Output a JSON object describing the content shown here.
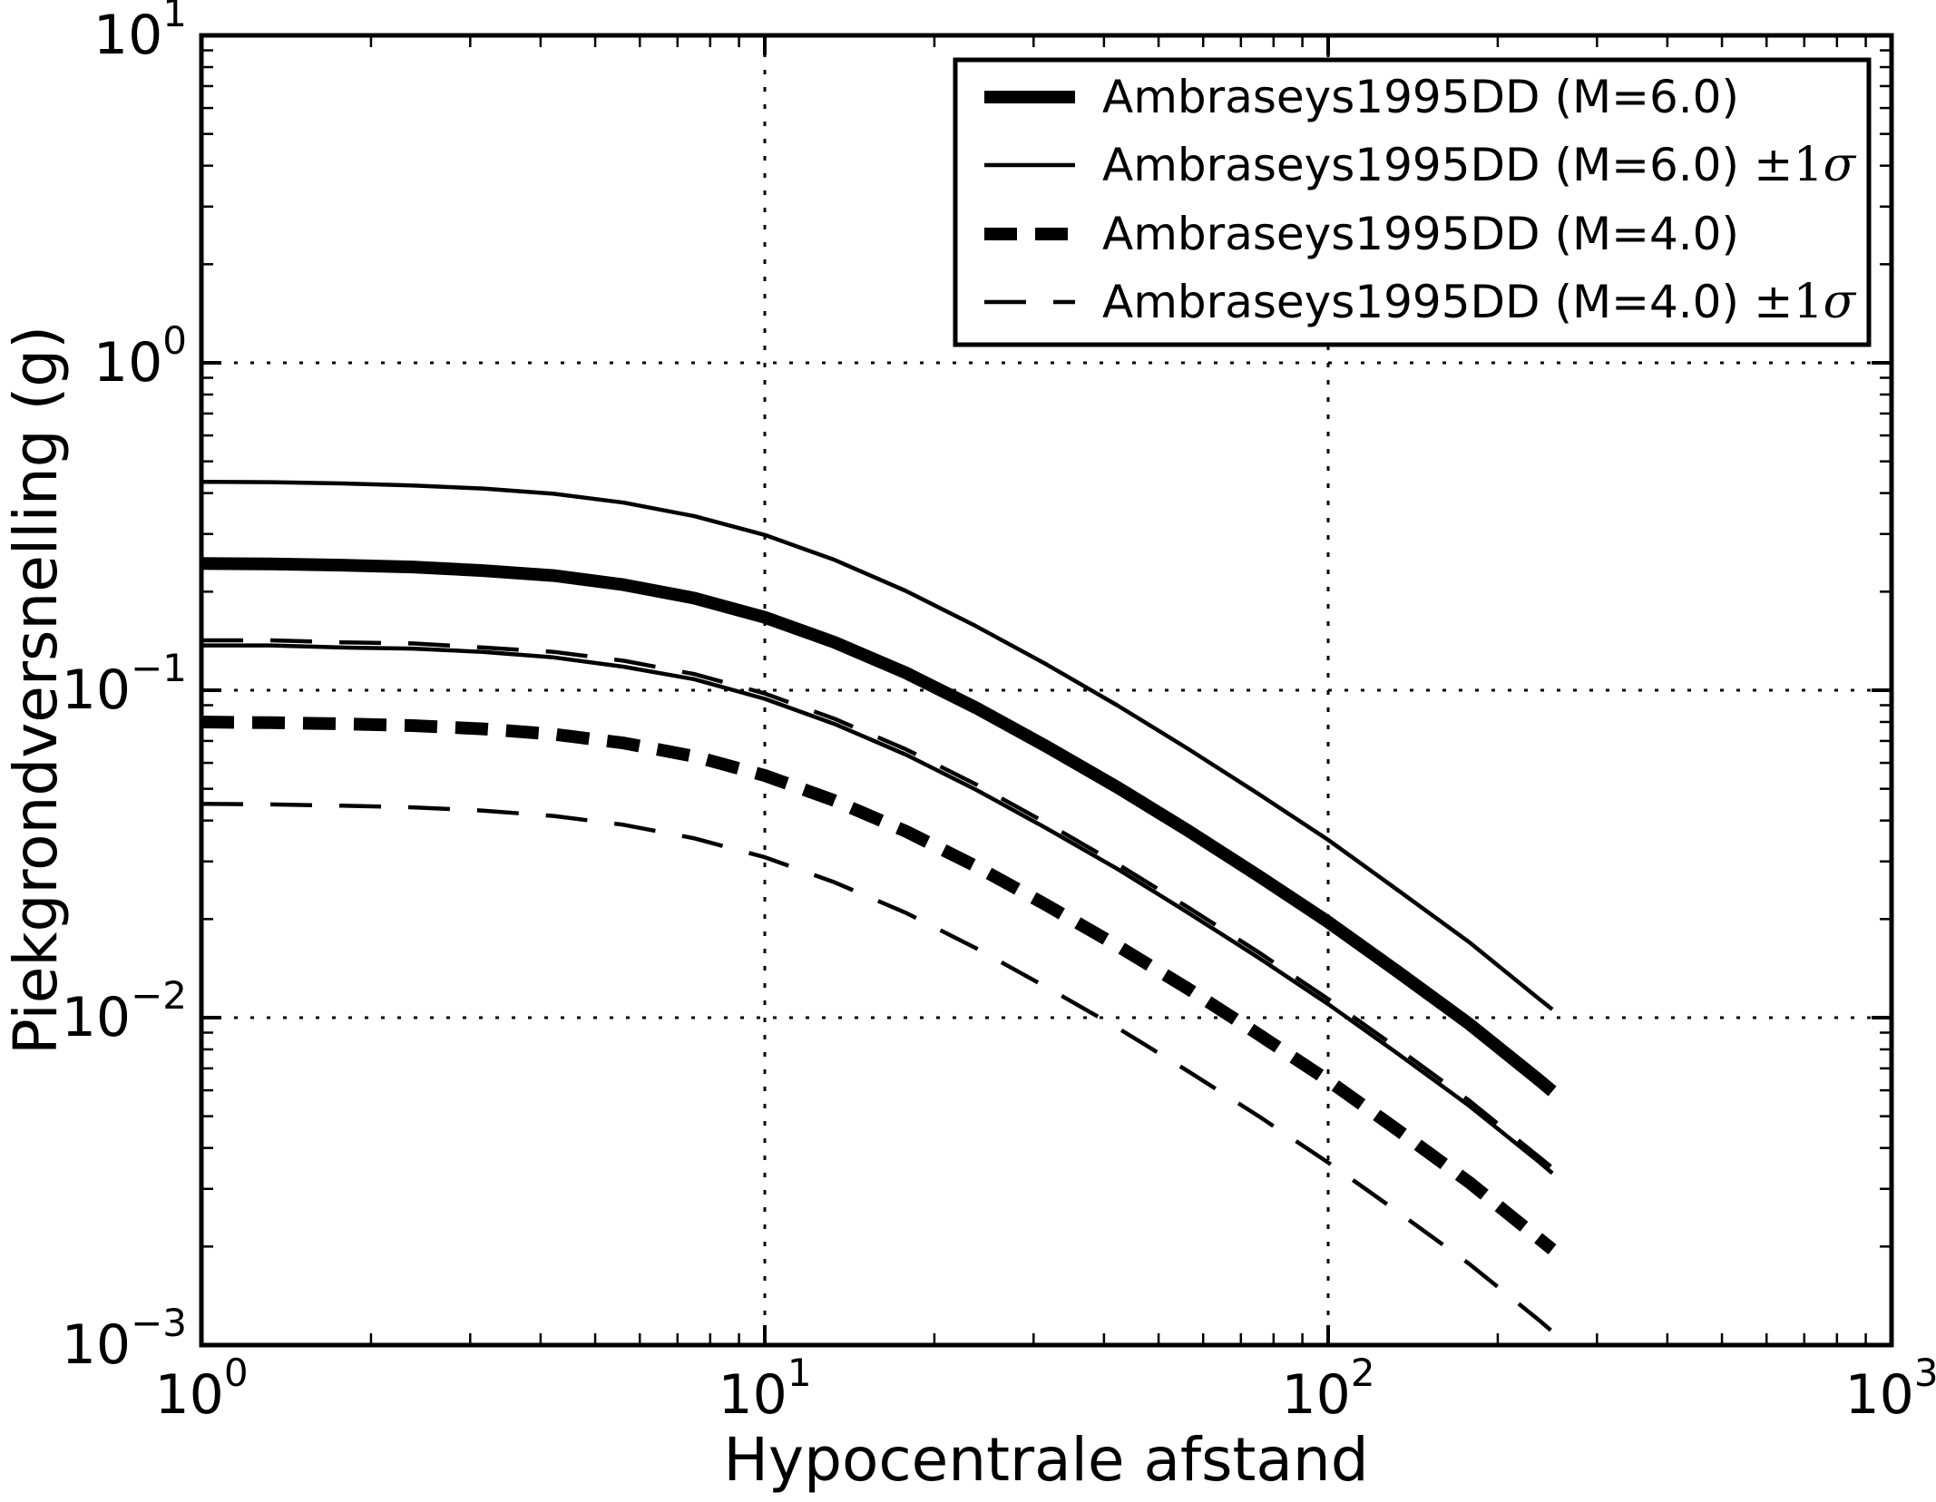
{
  "chart": {
    "xlabel": "Hypocentrale afstand",
    "ylabel": "Piekgrondversnelling (g)",
    "x_scale": "log",
    "y_scale": "log",
    "xlim": [
      1,
      1000
    ],
    "ylim": [
      0.001,
      10
    ],
    "x_ticks": [
      {
        "base": "10",
        "exp": "0",
        "value": 1
      },
      {
        "base": "10",
        "exp": "1",
        "value": 10
      },
      {
        "base": "10",
        "exp": "2",
        "value": 100
      },
      {
        "base": "10",
        "exp": "3",
        "value": 1000
      }
    ],
    "y_ticks": [
      {
        "base": "10",
        "exp": "1",
        "value": 10
      },
      {
        "base": "10",
        "exp": "0",
        "value": 1
      },
      {
        "base": "10",
        "exp": "−1",
        "value": 0.1
      },
      {
        "base": "10",
        "exp": "−2",
        "value": 0.01
      },
      {
        "base": "10",
        "exp": "−3",
        "value": 0.001
      }
    ],
    "grid": {
      "x_values": [
        10,
        100
      ],
      "y_values": [
        1,
        0.1,
        0.01
      ]
    },
    "colors": {
      "foreground": "#000000",
      "background": "#ffffff"
    }
  },
  "legend": {
    "position": "upper right",
    "entries": [
      {
        "label": "Ambraseys1995DD (M=6.0)",
        "suffix": "",
        "style": "thick-solid"
      },
      {
        "label": "Ambraseys1995DD (M=6.0)",
        "suffix": "±1σ",
        "style": "thin-solid"
      },
      {
        "label": "Ambraseys1995DD (M=4.0)",
        "suffix": "",
        "style": "thick-dashed"
      },
      {
        "label": "Ambraseys1995DD (M=4.0)",
        "suffix": "±1σ",
        "style": "thin-dashed"
      }
    ]
  },
  "chart_data": {
    "type": "line",
    "title": "",
    "xlabel": "Hypocentrale afstand",
    "ylabel": "Piekgrondversnelling (g)",
    "x_scale": "log",
    "y_scale": "log",
    "xlim": [
      1,
      1000
    ],
    "ylim": [
      0.001,
      10
    ],
    "grid": true,
    "legend_position": "upper right",
    "x": [
      1,
      1.33,
      1.78,
      2.37,
      3.16,
      4.22,
      5.62,
      7.5,
      10,
      13.3,
      17.8,
      23.7,
      31.6,
      42.2,
      56.2,
      75,
      100,
      133,
      178,
      237,
      250
    ],
    "series": [
      {
        "id": "m6",
        "name": "Ambraseys1995DD (M=6.0)",
        "style": "thick-solid",
        "values": [
          0.244,
          0.243,
          0.241,
          0.238,
          0.232,
          0.224,
          0.21,
          0.191,
          0.167,
          0.14,
          0.113,
          0.0884,
          0.0674,
          0.0506,
          0.0374,
          0.0272,
          0.0196,
          0.0138,
          0.00957,
          0.00644,
          0.00596
        ]
      },
      {
        "id": "m6-upper-1sigma",
        "name": "Ambraseys1995DD (M=6.0) +1σ",
        "style": "thin-solid",
        "values": [
          0.433,
          0.432,
          0.428,
          0.422,
          0.413,
          0.398,
          0.374,
          0.34,
          0.298,
          0.25,
          0.201,
          0.157,
          0.12,
          0.09,
          0.0665,
          0.0484,
          0.0349,
          0.0245,
          0.017,
          0.0114,
          0.0106
        ]
      },
      {
        "id": "m6-lower-1sigma",
        "name": "Ambraseys1995DD (M=6.0) −1σ",
        "style": "thin-solid",
        "values": [
          0.137,
          0.137,
          0.135,
          0.134,
          0.131,
          0.126,
          0.118,
          0.108,
          0.0941,
          0.0789,
          0.0636,
          0.0497,
          0.0379,
          0.0285,
          0.021,
          0.0153,
          0.011,
          0.00776,
          0.00538,
          0.00362,
          0.00335
        ]
      },
      {
        "id": "m4",
        "name": "Ambraseys1995DD (M=4.0)",
        "style": "thick-dashed",
        "values": [
          0.08,
          0.0796,
          0.079,
          0.078,
          0.0762,
          0.0734,
          0.069,
          0.0628,
          0.0549,
          0.046,
          0.0371,
          0.029,
          0.0221,
          0.0166,
          0.0123,
          0.00892,
          0.00643,
          0.00453,
          0.00314,
          0.00211,
          0.00196
        ]
      },
      {
        "id": "m4-upper-1sigma",
        "name": "Ambraseys1995DD (M=4.0) +1σ",
        "style": "thin-dashed",
        "values": [
          0.142,
          0.142,
          0.14,
          0.139,
          0.135,
          0.131,
          0.123,
          0.112,
          0.0977,
          0.0818,
          0.066,
          0.0516,
          0.0393,
          0.0295,
          0.0218,
          0.0159,
          0.0114,
          0.00805,
          0.00558,
          0.00375,
          0.00348
        ]
      },
      {
        "id": "m4-lower-1sigma",
        "name": "Ambraseys1995DD (M=4.0) −1σ",
        "style": "thin-dashed",
        "values": [
          0.045,
          0.0448,
          0.0444,
          0.0439,
          0.0429,
          0.0413,
          0.0388,
          0.0353,
          0.0309,
          0.0259,
          0.0209,
          0.0163,
          0.0124,
          0.00933,
          0.00689,
          0.00502,
          0.00361,
          0.00255,
          0.00177,
          0.00119,
          0.0011
        ]
      }
    ]
  }
}
